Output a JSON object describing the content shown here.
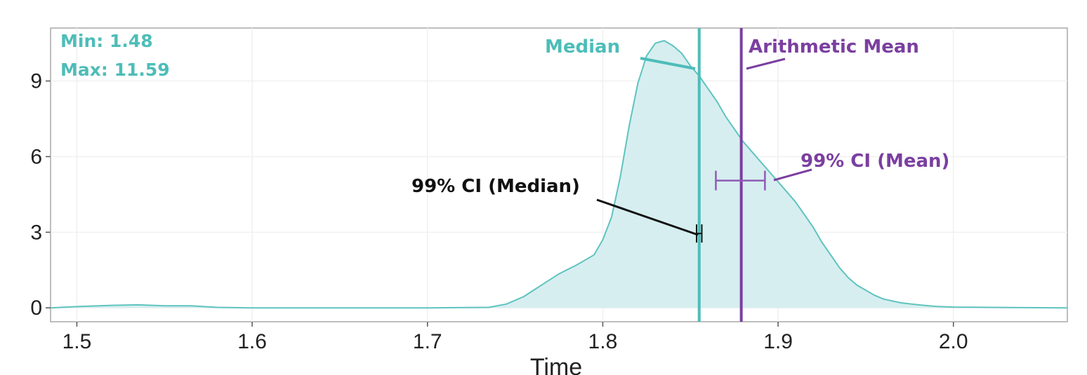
{
  "chart_data": {
    "type": "area",
    "xlabel": "Time",
    "ylabel": "",
    "xlim": [
      1.485,
      2.065
    ],
    "ylim": [
      -0.55,
      11.1
    ],
    "x_ticks": [
      1.5,
      1.6,
      1.7,
      1.8,
      1.9,
      2.0
    ],
    "x_tick_labels": [
      "1.5",
      "1.6",
      "1.7",
      "1.8",
      "1.9",
      "2.0"
    ],
    "y_ticks": [
      0,
      3,
      6,
      9
    ],
    "y_tick_labels": [
      "0",
      "3",
      "6",
      "9"
    ],
    "grid": true,
    "density": {
      "x": [
        1.485,
        1.5,
        1.52,
        1.535,
        1.55,
        1.565,
        1.58,
        1.6,
        1.65,
        1.7,
        1.735,
        1.745,
        1.755,
        1.765,
        1.775,
        1.785,
        1.795,
        1.8,
        1.805,
        1.81,
        1.815,
        1.82,
        1.825,
        1.83,
        1.835,
        1.84,
        1.845,
        1.85,
        1.855,
        1.86,
        1.865,
        1.87,
        1.875,
        1.88,
        1.885,
        1.89,
        1.895,
        1.9,
        1.905,
        1.91,
        1.915,
        1.92,
        1.925,
        1.93,
        1.935,
        1.94,
        1.945,
        1.95,
        1.955,
        1.96,
        1.97,
        1.98,
        1.99,
        2.0,
        2.02,
        2.04,
        2.065
      ],
      "y": [
        0,
        0.05,
        0.1,
        0.12,
        0.08,
        0.08,
        0.02,
        0,
        0,
        0,
        0.02,
        0.15,
        0.45,
        0.9,
        1.35,
        1.7,
        2.1,
        2.7,
        3.6,
        5.2,
        7.2,
        8.9,
        10.0,
        10.5,
        10.6,
        10.4,
        10.1,
        9.6,
        9.2,
        8.7,
        8.2,
        7.6,
        7.1,
        6.6,
        6.2,
        5.8,
        5.4,
        5.0,
        4.6,
        4.2,
        3.7,
        3.2,
        2.6,
        2.1,
        1.6,
        1.2,
        0.9,
        0.7,
        0.5,
        0.35,
        0.2,
        0.12,
        0.06,
        0.03,
        0.02,
        0.01,
        0
      ]
    },
    "median": 1.855,
    "mean": 1.879,
    "ci_median": [
      1.8535,
      1.8565
    ],
    "ci_median_y": 2.95,
    "ci_mean": [
      1.8645,
      1.8925
    ],
    "ci_mean_y": 5.05,
    "colors": {
      "density_fill": "#d6eef0",
      "density_line": "#5fc3bf",
      "median": "#4dbdb8",
      "mean": "#7b3fa0",
      "ci_median": "#111111",
      "annotation_text": "#111111",
      "minmax_text": "#4dbdb8"
    },
    "annotations": {
      "min_label": "Min: 1.48",
      "max_label": "Max: 11.59",
      "median_label": "Median",
      "mean_label": "Arithmetic Mean",
      "ci_median_label": "99% CI (Median)",
      "ci_mean_label": "99% CI  (Mean)"
    }
  }
}
